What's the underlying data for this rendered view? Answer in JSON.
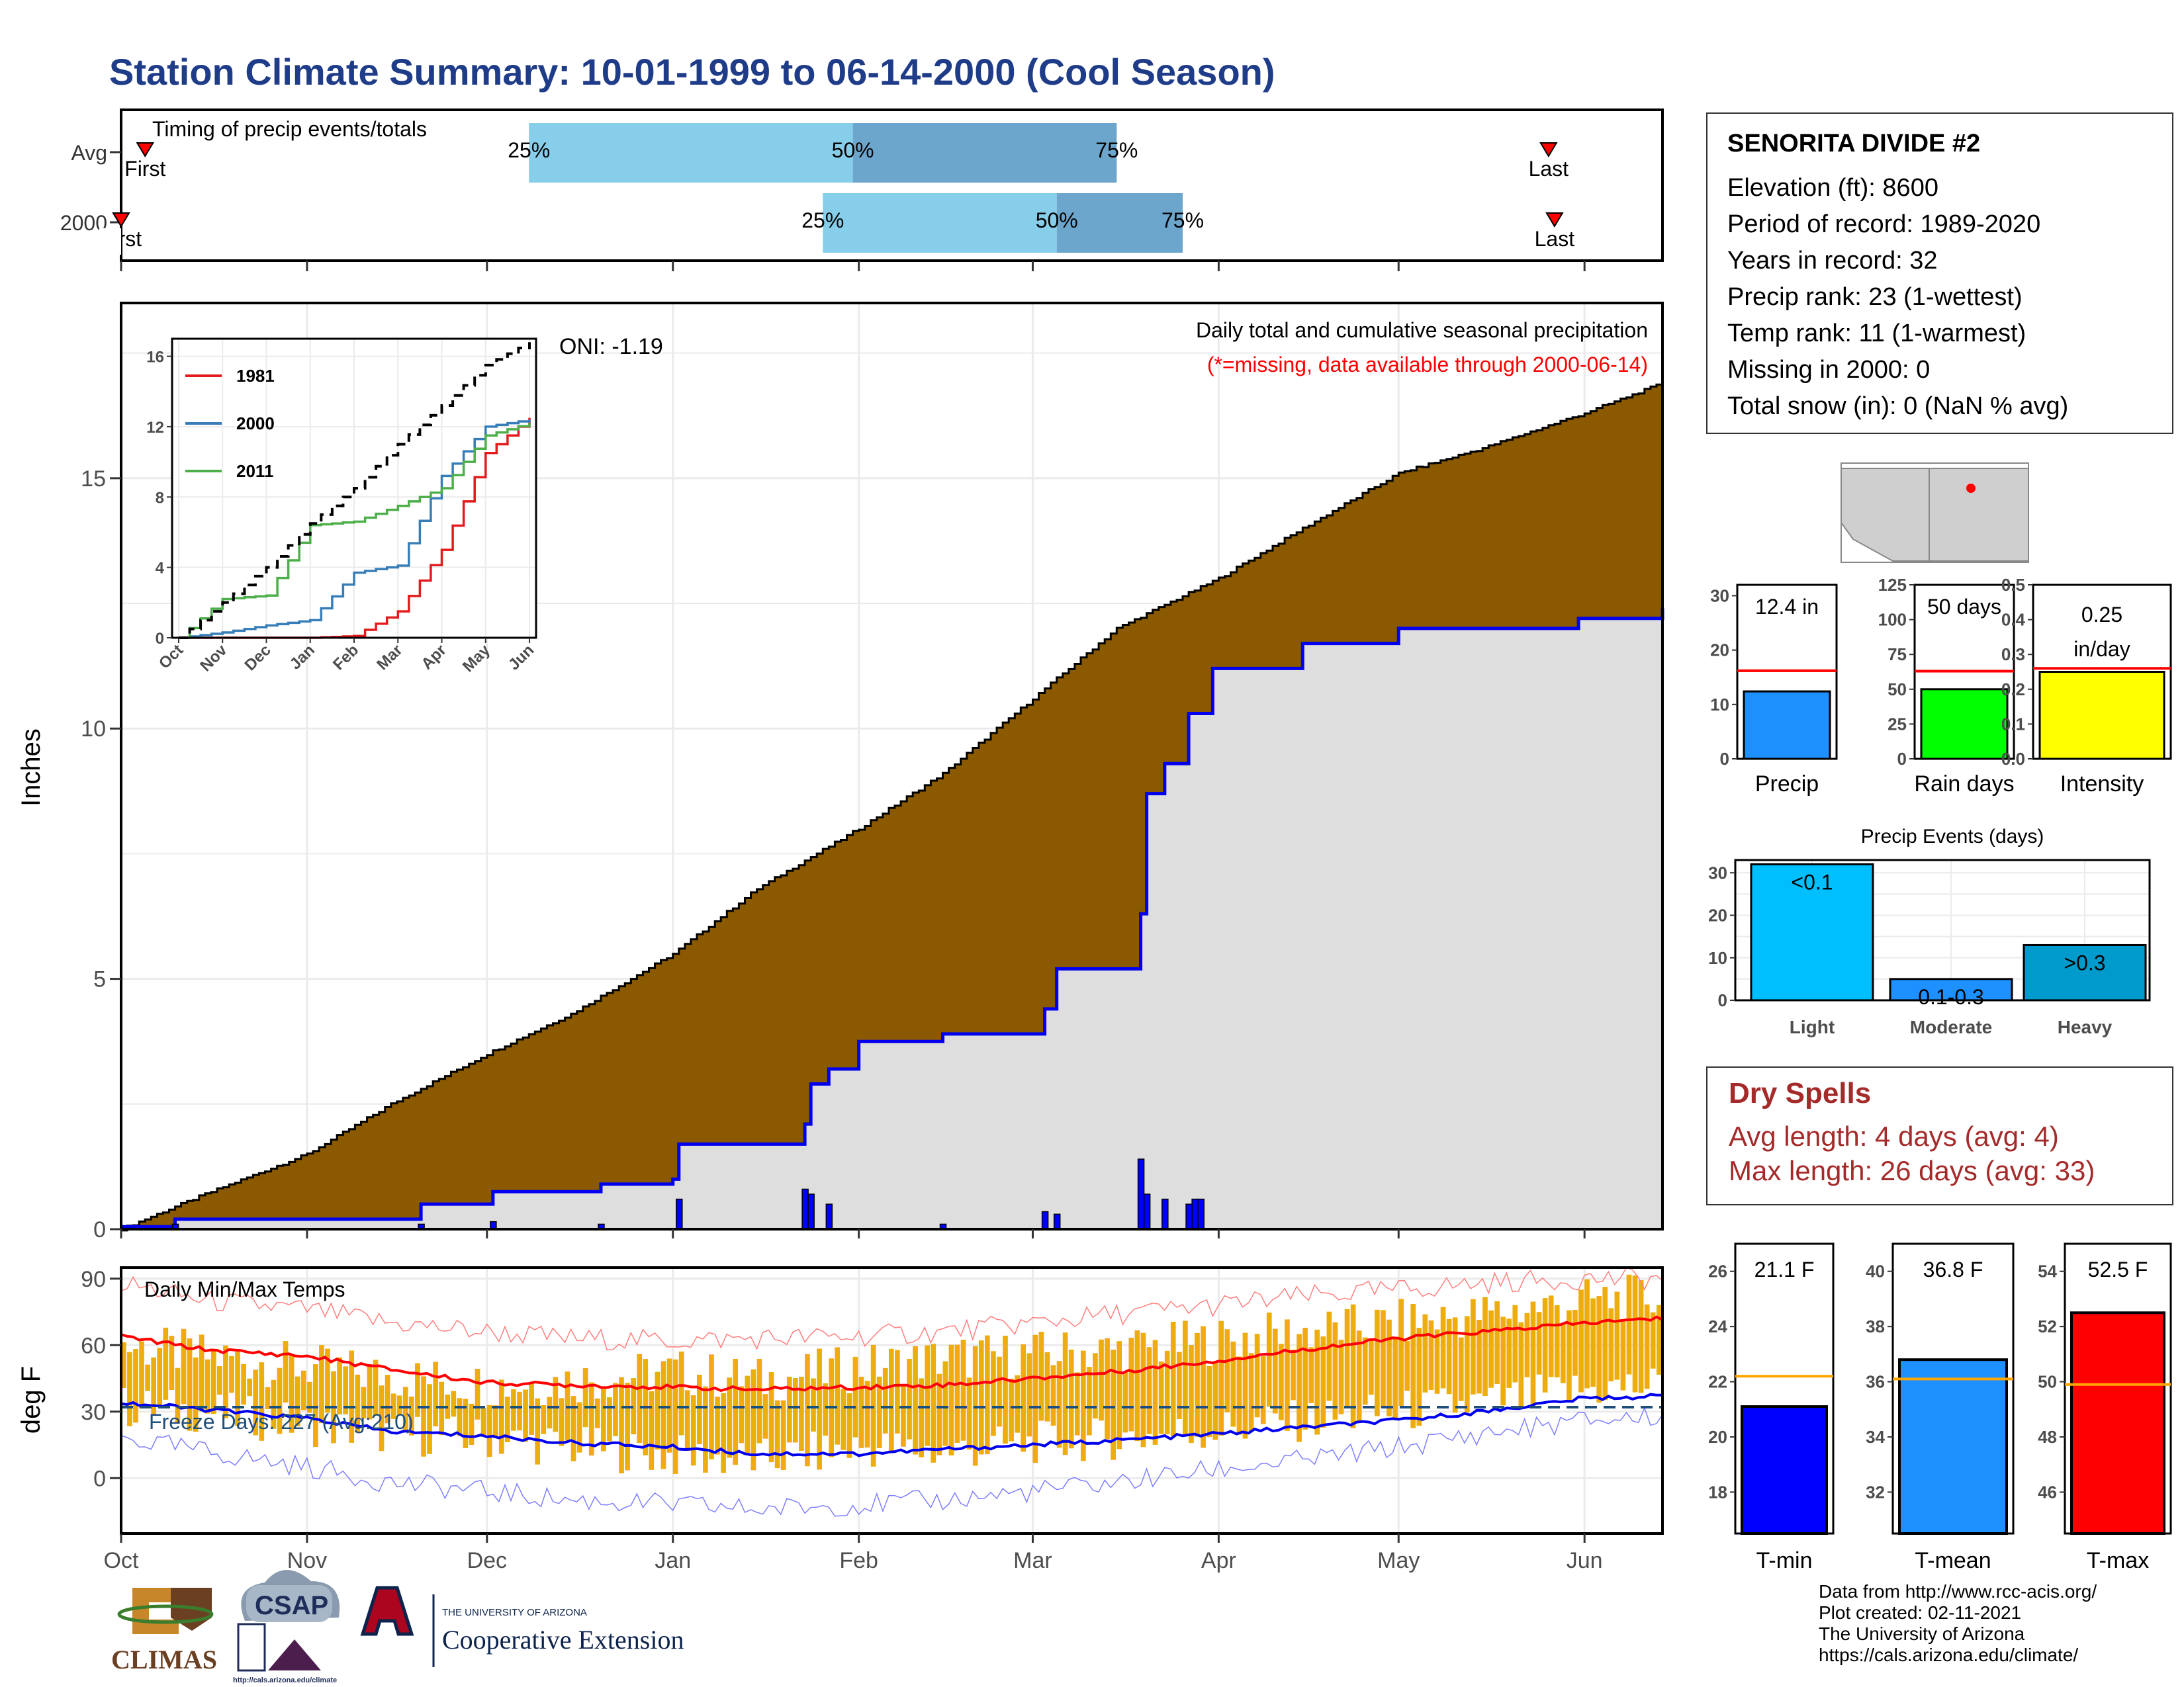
{
  "title": "Station Climate Summary: 10-01-1999 to 06-14-2000 (Cool Season)",
  "colors": {
    "title": "#1f3c88",
    "cumulative_fill": "#8b5a00",
    "current_fill": "#dedede",
    "line_blue": "#0000ee",
    "temp_bar": "#eead0e",
    "tmax_line": "#ff0000",
    "tmin_line": "#0000ee",
    "red_line": "#ff0000",
    "q_light": "#87ceeb",
    "q_dark": "#6ca6cd",
    "dry_spells": "#a52a2a"
  },
  "timing": {
    "title": "Timing of precip events/totals",
    "rows": [
      {
        "label": "Avg",
        "first_label": "First",
        "last_label": "Last",
        "q25": "25%",
        "q50": "50%",
        "q75": "75%",
        "first": "1999-10-05",
        "last": "2000-05-26",
        "p25": "1999-12-08",
        "p50": "2000-01-31",
        "p75": "2000-03-15"
      },
      {
        "label": "2000",
        "first_label": "First",
        "last_label": "Last",
        "q25": "25%",
        "q50": "50%",
        "q75": "75%",
        "first": "1999-10-01",
        "last": "2000-05-27",
        "p25": "2000-01-26",
        "p50": "2000-03-05",
        "p75": "2000-03-26"
      }
    ]
  },
  "precip": {
    "ylabel": "Inches",
    "title": "Daily total and cumulative seasonal precipitation",
    "subtitle": "(*=missing, data available through 2000-06-14)",
    "oni": "ONI: -1.19",
    "y_ticks": [
      "0",
      "5",
      "10",
      "15"
    ]
  },
  "inset": {
    "legend": [
      "1981",
      "2000",
      "2011"
    ],
    "legend_colors": [
      "#e41a1c",
      "#377eb8",
      "#4daf4a"
    ],
    "y_ticks": [
      "0",
      "4",
      "8",
      "12",
      "16"
    ],
    "x_ticks": [
      "Oct",
      "Nov",
      "Dec",
      "Jan",
      "Feb",
      "Mar",
      "Apr",
      "May",
      "Jun"
    ]
  },
  "temps": {
    "title": "Daily Min/Max Temps",
    "ylabel": "deg F",
    "freeze": "Freeze Days: 227 (Avg:210)",
    "y_ticks": [
      "0",
      "30",
      "60",
      "90"
    ]
  },
  "months": [
    "Oct",
    "Nov",
    "Dec",
    "Jan",
    "Feb",
    "Mar",
    "Apr",
    "May",
    "Jun"
  ],
  "station": {
    "name": "SENORITA DIVIDE #2",
    "elevation": "Elevation (ft): 8600",
    "period": "Period of record: 1989-2020",
    "years": "Years in record: 32",
    "precip_rank": "Precip rank: 23 (1-wettest)",
    "temp_rank": "Temp rank: 11 (1-warmest)",
    "missing": "Missing in 2000: 0",
    "snow": "Total snow (in): 0 (NaN % avg)"
  },
  "summary_bars": [
    {
      "label": "Precip",
      "value_text": "12.4 in",
      "value": 12.4,
      "avg": 16.2,
      "ymax": 32,
      "ticks": [
        "0",
        "10",
        "20",
        "30"
      ],
      "color": "#1e90ff"
    },
    {
      "label": "Rain days",
      "value_text": "50 days",
      "value": 50,
      "avg": 63,
      "ymax": 125,
      "ticks": [
        "0",
        "25",
        "50",
        "75",
        "100",
        "125"
      ],
      "color": "#00ff00"
    },
    {
      "label": "Intensity",
      "value_text": "0.25",
      "value_text2": "in/day",
      "value": 0.25,
      "avg": 0.26,
      "ymax": 0.5,
      "ticks": [
        "0.0",
        "0.1",
        "0.2",
        "0.3",
        "0.4",
        "0.5"
      ],
      "color": "#ffff00"
    }
  ],
  "events": {
    "title": "Precip Events (days)",
    "categories": [
      "Light",
      "Moderate",
      "Heavy"
    ],
    "labels": [
      "<0.1",
      "0.1-0.3",
      ">0.3"
    ],
    "values": [
      32,
      5,
      13
    ],
    "colors": [
      "#00bfff",
      "#1e90ff",
      "#009acd"
    ],
    "ticks": [
      "0",
      "10",
      "20",
      "30"
    ]
  },
  "dry": {
    "title": "Dry Spells",
    "avg": "Avg length: 4 days (avg: 4)",
    "max": "Max length: 26 days (avg: 33)"
  },
  "temp_bars": [
    {
      "label": "T-min",
      "value_text": "21.1 F",
      "value": 21.1,
      "avg": 22.2,
      "ymin": 16.5,
      "ymax": 27.0,
      "ticks": [
        "18",
        "20",
        "22",
        "24",
        "26"
      ],
      "color": "#0000ff"
    },
    {
      "label": "T-mean",
      "value_text": "36.8 F",
      "value": 36.8,
      "avg": 36.1,
      "ymin": 30.5,
      "ymax": 41.0,
      "ticks": [
        "32",
        "34",
        "36",
        "38",
        "40"
      ],
      "color": "#1e90ff"
    },
    {
      "label": "T-max",
      "value_text": "52.5 F",
      "value": 52.5,
      "avg": 49.9,
      "ymin": 44.5,
      "ymax": 55.0,
      "ticks": [
        "46",
        "48",
        "50",
        "52",
        "54"
      ],
      "color": "#ff0000"
    }
  ],
  "logos": {
    "climas": "CLIMAS",
    "csap": "CSAP",
    "csap_url": "http://cals.arizona.edu/climate",
    "ua_line1": "THE UNIVERSITY OF ARIZONA",
    "ua_line2": "Cooperative Extension"
  },
  "credits": [
    "Data from http://www.rcc-acis.org/",
    "Plot created: 02-11-2021",
    "The University of Arizona",
    "https://cals.arizona.edu/climate/"
  ],
  "chart_data": [
    {
      "type": "area",
      "title": "Daily total and cumulative seasonal precipitation",
      "ylabel": "Inches",
      "ylim": [
        0,
        18.5
      ],
      "series": [
        {
          "name": "",
          "type": "area",
          "x": [
            "1999-10-01",
            "1999-10-15",
            "1999-11-01",
            "1999-11-15",
            "1999-12-01",
            "1999-12-15",
            "2000-01-01",
            "2000-01-15",
            "2000-02-01",
            "2000-02-15",
            "2000-03-01",
            "2000-03-15",
            "2000-04-01",
            "2000-04-15",
            "2000-05-01",
            "2000-05-15",
            "2000-06-01",
            "2000-06-14"
          ],
          "y": [
            0.0,
            0.7,
            1.5,
            2.5,
            3.5,
            4.3,
            5.5,
            6.8,
            8.0,
            9.1,
            10.6,
            12.0,
            13.0,
            14.0,
            15.1,
            15.6,
            16.3,
            16.9
          ]
        },
        {
          "name": "",
          "type": "step",
          "x": [
            "1999-10-01",
            "1999-10-10",
            "1999-11-20",
            "1999-12-02",
            "1999-12-20",
            "2000-01-01",
            "2000-01-02",
            "2000-01-23",
            "2000-01-24",
            "2000-01-27",
            "2000-02-01",
            "2000-02-15",
            "2000-03-03",
            "2000-03-05",
            "2000-03-19",
            "2000-03-20",
            "2000-03-23",
            "2000-03-27",
            "2000-03-31",
            "2000-04-15",
            "2000-05-01",
            "2000-05-31",
            "2000-06-14"
          ],
          "y": [
            0.05,
            0.2,
            0.5,
            0.75,
            0.9,
            1.0,
            1.7,
            2.1,
            2.9,
            3.2,
            3.75,
            3.9,
            4.4,
            5.2,
            6.3,
            8.7,
            9.3,
            10.3,
            11.2,
            11.7,
            12.0,
            12.2,
            12.4
          ]
        }
      ],
      "daily_bars": {
        "x": [
          "1999-10-10",
          "1999-11-20",
          "1999-12-02",
          "1999-12-20",
          "2000-01-02",
          "2000-01-23",
          "2000-01-24",
          "2000-01-27",
          "2000-02-15",
          "2000-03-03",
          "2000-03-05",
          "2000-03-19",
          "2000-03-20",
          "2000-03-23",
          "2000-03-27",
          "2000-03-28",
          "2000-03-29"
        ],
        "y": [
          0.1,
          0.1,
          0.15,
          0.1,
          0.6,
          0.8,
          0.7,
          0.5,
          0.1,
          0.35,
          0.3,
          1.4,
          0.7,
          0.6,
          0.5,
          0.6,
          0.6
        ]
      }
    },
    {
      "type": "line",
      "title": "",
      "x": [
        "Oct",
        "Nov",
        "Dec",
        "Jan",
        "Feb",
        "Mar",
        "Apr",
        "May",
        "Jun"
      ],
      "ylim": [
        0,
        17
      ],
      "series": [
        {
          "name": "1981",
          "values": [
            0.0,
            0.0,
            0.0,
            0.0,
            0.1,
            1.5,
            5.0,
            10.5,
            12.5
          ]
        },
        {
          "name": "2000",
          "values": [
            0.0,
            0.3,
            0.7,
            1.0,
            3.7,
            4.1,
            9.2,
            12.0,
            12.4
          ]
        },
        {
          "name": "2011",
          "values": [
            0.0,
            2.2,
            2.4,
            6.4,
            6.6,
            7.5,
            8.5,
            11.5,
            12.2
          ]
        },
        {
          "name": "",
          "values": [
            0.0,
            2.0,
            4.0,
            6.5,
            8.5,
            11.0,
            13.2,
            15.5,
            16.8
          ]
        }
      ]
    },
    {
      "type": "bar",
      "title": "Daily Min/Max Temps",
      "ylabel": "deg F",
      "ylim": [
        -25,
        95
      ],
      "x": [
        "1999-10-01",
        "1999-10-15",
        "1999-11-01",
        "1999-11-15",
        "1999-12-01",
        "1999-12-15",
        "2000-01-01",
        "2000-01-15",
        "2000-02-01",
        "2000-02-15",
        "2000-03-01",
        "2000-03-15",
        "2000-04-01",
        "2000-04-15",
        "2000-05-01",
        "2000-05-15",
        "2000-06-01",
        "2000-06-14"
      ],
      "series": [
        {
          "name": "",
          "type": "range_bars",
          "values": [
            60,
            55,
            50,
            46,
            42,
            44,
            48,
            44,
            50,
            54,
            56,
            58,
            62,
            66,
            70,
            74,
            80,
            82
          ]
        },
        {
          "name": "",
          "type": "range_bars",
          "values": [
            32,
            30,
            24,
            20,
            18,
            14,
            10,
            8,
            14,
            12,
            16,
            18,
            22,
            26,
            30,
            34,
            40,
            42
          ]
        },
        {
          "name": "",
          "type": "line",
          "values": [
            64,
            58,
            55,
            49,
            43,
            42,
            41,
            40,
            41,
            42,
            45,
            48,
            53,
            58,
            63,
            66,
            70,
            72
          ]
        },
        {
          "name": "",
          "type": "line",
          "values": [
            34,
            31,
            27,
            21,
            19,
            16,
            14,
            11,
            11,
            13,
            15,
            17,
            20,
            23,
            26,
            30,
            36,
            37
          ]
        },
        {
          "name": "",
          "type": "line",
          "values": [
            88,
            80,
            76,
            70,
            66,
            63,
            62,
            63,
            64,
            66,
            70,
            74,
            78,
            82,
            85,
            88,
            90,
            90
          ]
        },
        {
          "name": "",
          "type": "line",
          "values": [
            18,
            12,
            5,
            -2,
            -6,
            -10,
            -12,
            -14,
            -12,
            -10,
            -6,
            -2,
            4,
            8,
            14,
            20,
            26,
            28
          ]
        }
      ],
      "annotations": [
        "Freeze Days: 227 (Avg:210)"
      ],
      "hline": 32
    }
  ]
}
